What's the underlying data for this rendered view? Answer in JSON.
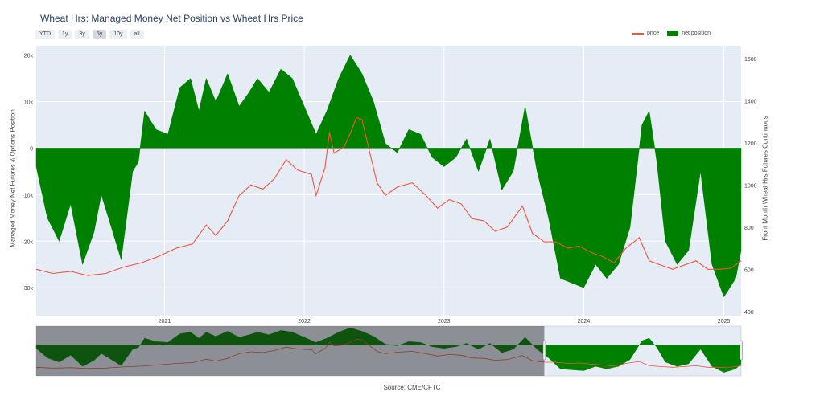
{
  "title": "Wheat Hrs: Managed Money Net Position vs Wheat Hrs Price",
  "range_buttons": [
    "YTD",
    "1y",
    "3y",
    "5y",
    "10y",
    "all"
  ],
  "range_active": "5y",
  "source": "Source: CME/CFTC",
  "colors": {
    "price": "#ef553b",
    "net": "#008000",
    "plot_bg": "#e5ecf6",
    "grid": "#ffffff"
  },
  "chart_data": {
    "type": "area",
    "legend_placement": "top-right",
    "grid": true,
    "x_tick_labels": [
      "2021",
      "2022",
      "2023",
      "2024",
      "2025"
    ],
    "x_range": [
      "2020-02-01",
      "2025-02-15"
    ],
    "y_left": {
      "label": "Managed Money Net Futures & Options Position",
      "range": [
        -36000,
        22000
      ],
      "ticks": [
        20000,
        10000,
        0,
        -10000,
        -20000,
        -30000
      ],
      "tick_labels": [
        "20k",
        "10k",
        "0",
        "-10k",
        "-20k",
        "-30k"
      ]
    },
    "y_right": {
      "label": "Front Month Wheat Hrs Futures Continuous",
      "range": [
        380,
        1660
      ],
      "ticks": [
        400,
        600,
        800,
        1000,
        1200,
        1400,
        1600
      ],
      "tick_labels": [
        "400",
        "600",
        "800",
        "1000",
        "1200",
        "1400",
        "1600"
      ]
    },
    "series": [
      {
        "name": "price",
        "axis": "right",
        "points": [
          [
            "2020-02-01",
            600
          ],
          [
            "2020-03-15",
            580
          ],
          [
            "2020-05-01",
            590
          ],
          [
            "2020-06-15",
            570
          ],
          [
            "2020-08-01",
            580
          ],
          [
            "2020-09-15",
            610
          ],
          [
            "2020-11-01",
            630
          ],
          [
            "2020-12-15",
            660
          ],
          [
            "2021-02-01",
            700
          ],
          [
            "2021-03-15",
            720
          ],
          [
            "2021-04-20",
            810
          ],
          [
            "2021-05-15",
            760
          ],
          [
            "2021-06-15",
            830
          ],
          [
            "2021-07-15",
            950
          ],
          [
            "2021-08-15",
            1000
          ],
          [
            "2021-09-15",
            980
          ],
          [
            "2021-10-15",
            1030
          ],
          [
            "2021-11-15",
            1120
          ],
          [
            "2021-12-15",
            1070
          ],
          [
            "2022-01-20",
            1050
          ],
          [
            "2022-02-01",
            950
          ],
          [
            "2022-02-24",
            1080
          ],
          [
            "2022-03-08",
            1250
          ],
          [
            "2022-03-20",
            1150
          ],
          [
            "2022-04-15",
            1180
          ],
          [
            "2022-05-05",
            1260
          ],
          [
            "2022-05-17",
            1320
          ],
          [
            "2022-06-01",
            1310
          ],
          [
            "2022-06-15",
            1200
          ],
          [
            "2022-07-10",
            1010
          ],
          [
            "2022-08-01",
            950
          ],
          [
            "2022-09-01",
            990
          ],
          [
            "2022-10-10",
            1010
          ],
          [
            "2022-11-15",
            950
          ],
          [
            "2022-12-15",
            890
          ],
          [
            "2023-01-15",
            930
          ],
          [
            "2023-02-15",
            910
          ],
          [
            "2023-03-15",
            840
          ],
          [
            "2023-04-15",
            830
          ],
          [
            "2023-05-15",
            780
          ],
          [
            "2023-06-15",
            800
          ],
          [
            "2023-07-25",
            900
          ],
          [
            "2023-08-20",
            770
          ],
          [
            "2023-09-20",
            730
          ],
          [
            "2023-10-20",
            730
          ],
          [
            "2023-11-20",
            700
          ],
          [
            "2023-12-20",
            710
          ],
          [
            "2024-01-20",
            680
          ],
          [
            "2024-02-20",
            660
          ],
          [
            "2024-03-20",
            630
          ],
          [
            "2024-04-20",
            700
          ],
          [
            "2024-05-25",
            750
          ],
          [
            "2024-06-20",
            640
          ],
          [
            "2024-07-20",
            620
          ],
          [
            "2024-08-20",
            600
          ],
          [
            "2024-09-20",
            620
          ],
          [
            "2024-10-20",
            640
          ],
          [
            "2024-11-20",
            600
          ],
          [
            "2024-12-20",
            600
          ],
          [
            "2025-01-20",
            605
          ],
          [
            "2025-02-15",
            640
          ]
        ]
      },
      {
        "name": "net position",
        "axis": "left",
        "points": [
          [
            "2020-02-01",
            -4000
          ],
          [
            "2020-03-01",
            -15000
          ],
          [
            "2020-04-01",
            -20000
          ],
          [
            "2020-05-01",
            -12000
          ],
          [
            "2020-06-01",
            -25000
          ],
          [
            "2020-07-01",
            -18000
          ],
          [
            "2020-07-20",
            -10000
          ],
          [
            "2020-08-15",
            -17000
          ],
          [
            "2020-09-10",
            -24000
          ],
          [
            "2020-10-10",
            -5000
          ],
          [
            "2020-10-25",
            -3000
          ],
          [
            "2020-11-10",
            8000
          ],
          [
            "2020-12-10",
            4000
          ],
          [
            "2021-01-10",
            3000
          ],
          [
            "2021-02-10",
            13000
          ],
          [
            "2021-03-10",
            15000
          ],
          [
            "2021-04-01",
            8000
          ],
          [
            "2021-04-20",
            15000
          ],
          [
            "2021-05-15",
            10000
          ],
          [
            "2021-06-15",
            16000
          ],
          [
            "2021-07-15",
            9000
          ],
          [
            "2021-08-10",
            12000
          ],
          [
            "2021-09-01",
            15000
          ],
          [
            "2021-10-01",
            12000
          ],
          [
            "2021-11-01",
            17000
          ],
          [
            "2021-12-01",
            15000
          ],
          [
            "2022-01-01",
            9000
          ],
          [
            "2022-02-01",
            3000
          ],
          [
            "2022-03-01",
            8000
          ],
          [
            "2022-04-01",
            15000
          ],
          [
            "2022-05-01",
            20000
          ],
          [
            "2022-06-01",
            16000
          ],
          [
            "2022-07-01",
            10000
          ],
          [
            "2022-08-01",
            1000
          ],
          [
            "2022-09-01",
            -1000
          ],
          [
            "2022-10-01",
            4000
          ],
          [
            "2022-11-01",
            3000
          ],
          [
            "2022-12-01",
            -2000
          ],
          [
            "2023-01-01",
            -4000
          ],
          [
            "2023-02-01",
            -2000
          ],
          [
            "2023-03-01",
            2000
          ],
          [
            "2023-04-01",
            -5000
          ],
          [
            "2023-05-01",
            2000
          ],
          [
            "2023-06-01",
            -9000
          ],
          [
            "2023-07-01",
            -5000
          ],
          [
            "2023-08-01",
            9000
          ],
          [
            "2023-09-01",
            -5000
          ],
          [
            "2023-10-01",
            -15000
          ],
          [
            "2023-11-01",
            -28000
          ],
          [
            "2023-12-01",
            -29000
          ],
          [
            "2024-01-01",
            -30000
          ],
          [
            "2024-02-01",
            -25000
          ],
          [
            "2024-03-01",
            -28000
          ],
          [
            "2024-04-01",
            -25000
          ],
          [
            "2024-05-01",
            -17000
          ],
          [
            "2024-06-01",
            5000
          ],
          [
            "2024-06-20",
            8000
          ],
          [
            "2024-07-10",
            -3000
          ],
          [
            "2024-08-01",
            -20000
          ],
          [
            "2024-09-01",
            -25000
          ],
          [
            "2024-10-01",
            -22000
          ],
          [
            "2024-11-01",
            -5000
          ],
          [
            "2024-12-01",
            -25000
          ],
          [
            "2025-01-01",
            -32000
          ],
          [
            "2025-02-01",
            -28000
          ],
          [
            "2025-02-15",
            -22000
          ]
        ]
      }
    ]
  },
  "navigator": {
    "window_start": "2023-09-20",
    "window_end": "2025-02-15"
  }
}
